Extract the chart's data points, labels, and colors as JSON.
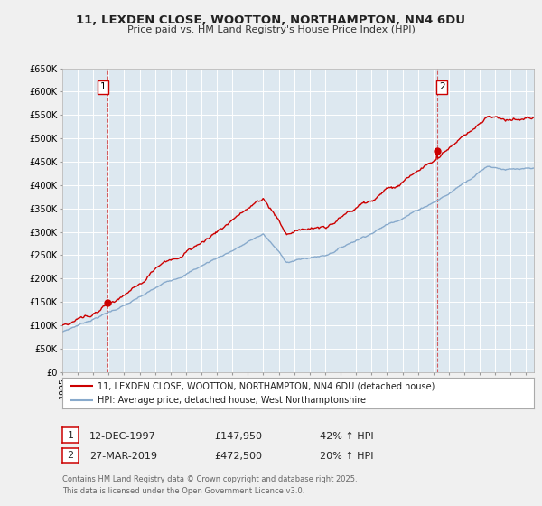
{
  "title": "11, LEXDEN CLOSE, WOOTTON, NORTHAMPTON, NN4 6DU",
  "subtitle": "Price paid vs. HM Land Registry's House Price Index (HPI)",
  "background_color": "#f0f0f0",
  "plot_background_color": "#dde8f0",
  "grid_color": "#ffffff",
  "red_color": "#cc0000",
  "blue_color": "#88aacc",
  "sale1_year": 1997.95,
  "sale1_price": 147950,
  "sale2_year": 2019.25,
  "sale2_price": 472500,
  "ylim": [
    0,
    650000
  ],
  "xlim": [
    1995.0,
    2025.5
  ],
  "legend_line1": "11, LEXDEN CLOSE, WOOTTON, NORTHAMPTON, NN4 6DU (detached house)",
  "legend_line2": "HPI: Average price, detached house, West Northamptonshire",
  "footer": "Contains HM Land Registry data © Crown copyright and database right 2025.\nThis data is licensed under the Open Government Licence v3.0.",
  "ytick_labels": [
    "£0",
    "£50K",
    "£100K",
    "£150K",
    "£200K",
    "£250K",
    "£300K",
    "£350K",
    "£400K",
    "£450K",
    "£500K",
    "£550K",
    "£600K",
    "£650K"
  ],
  "ytick_vals": [
    0,
    50000,
    100000,
    150000,
    200000,
    250000,
    300000,
    350000,
    400000,
    450000,
    500000,
    550000,
    600000,
    650000
  ]
}
